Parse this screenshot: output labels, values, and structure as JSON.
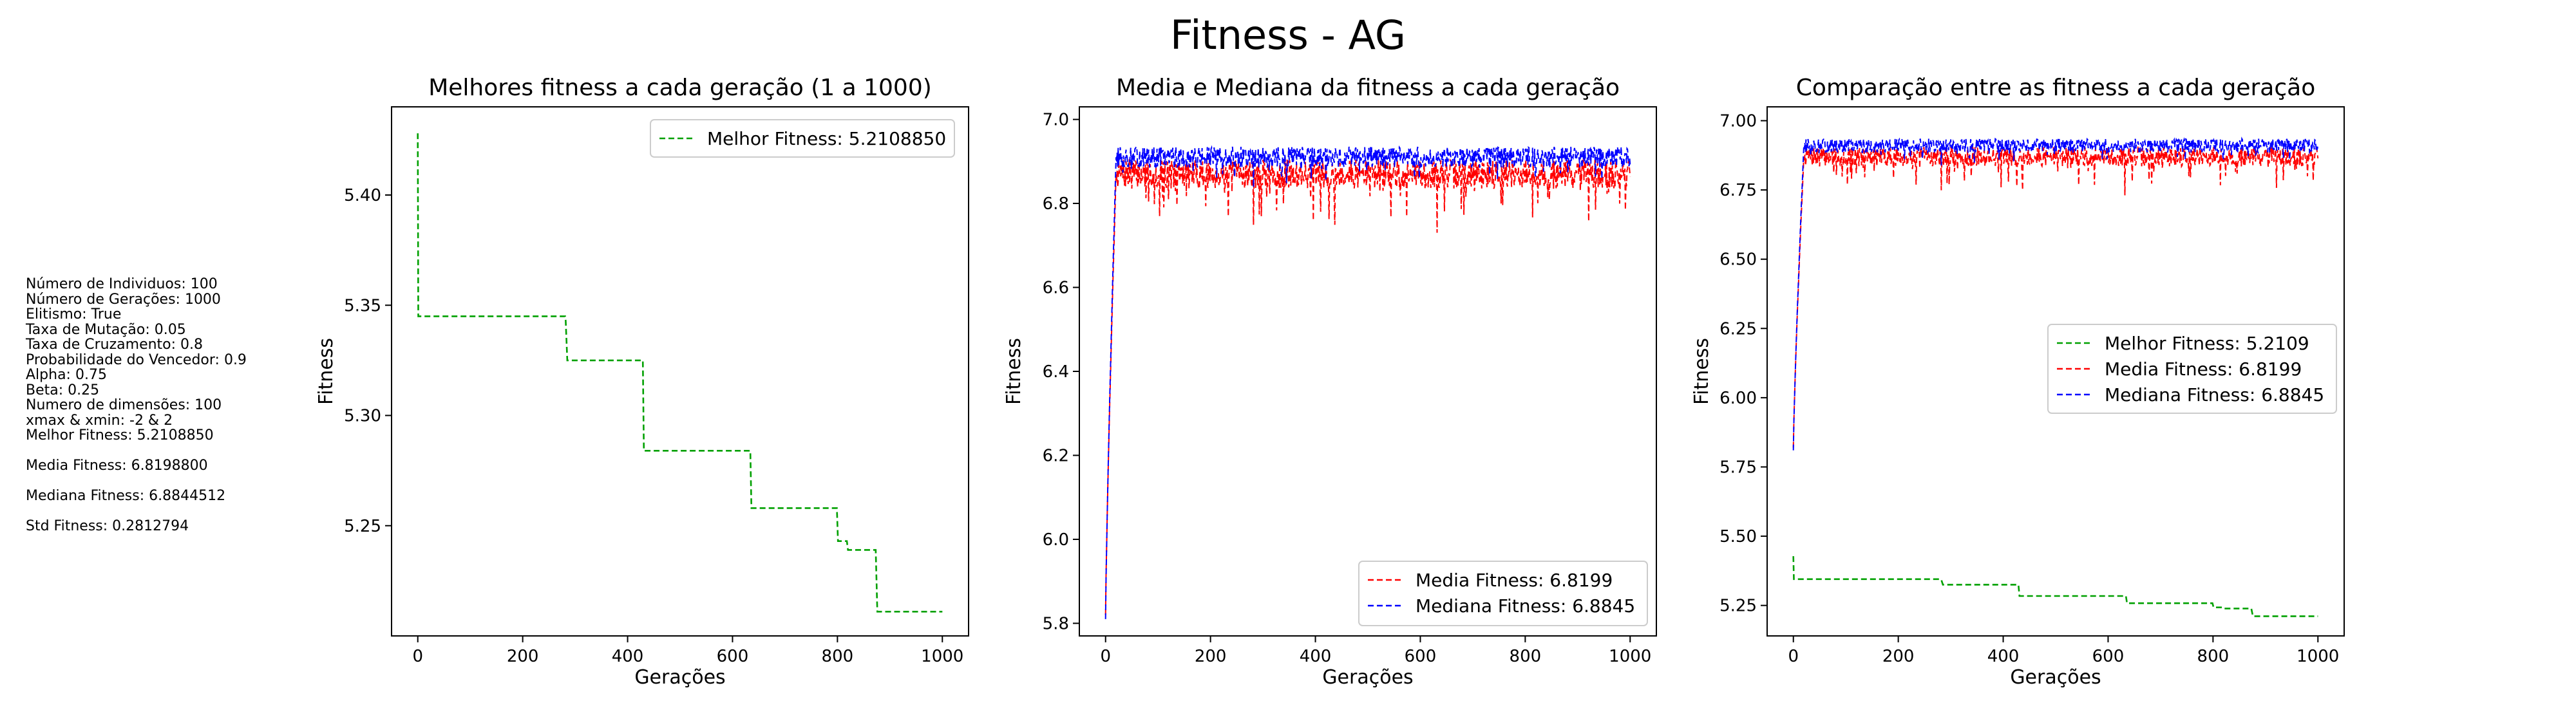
{
  "suptitle": "Fitness - AG",
  "info_lines": [
    "Número de Individuos: 100",
    "Número de Gerações: 1000",
    "Elitismo: True",
    "Taxa de Mutação: 0.05",
    "Taxa de Cruzamento: 0.8",
    "Probabilidade do Vencedor: 0.9",
    "Alpha: 0.75",
    "Beta: 0.25",
    "Numero de dimensões: 100",
    "xmax & xmin: -2 & 2",
    "Melhor Fitness: 5.2108850",
    "",
    "Media Fitness: 6.8198800",
    "",
    "Mediana Fitness: 6.8844512",
    "",
    "Std Fitness: 0.2812794"
  ],
  "colors": {
    "best": "#00a000",
    "mean": "#ff0000",
    "median": "#0000ff"
  },
  "chart_data": [
    {
      "type": "line",
      "title": "Melhores fitness a cada geração (1 a 1000)",
      "xlabel": "Gerações",
      "ylabel": "Fitness",
      "xlim": [
        -50,
        1050
      ],
      "ylim": [
        5.2,
        5.44
      ],
      "xticks": [
        0,
        200,
        400,
        600,
        800,
        1000
      ],
      "yticks": [
        5.25,
        5.3,
        5.35,
        5.4
      ],
      "ytick_labels": [
        "5.25",
        "5.30",
        "5.35",
        "5.40"
      ],
      "legend_position": "upper right",
      "series": [
        {
          "name": "Melhor Fitness: 5.2108850",
          "color": "best",
          "style": "step",
          "points": [
            [
              0,
              5.428
            ],
            [
              1,
              5.345
            ],
            [
              281,
              5.345
            ],
            [
              282,
              5.343
            ],
            [
              285,
              5.325
            ],
            [
              429,
              5.325
            ],
            [
              431,
              5.284
            ],
            [
              634,
              5.284
            ],
            [
              636,
              5.258
            ],
            [
              799,
              5.258
            ],
            [
              801,
              5.243
            ],
            [
              818,
              5.243
            ],
            [
              820,
              5.239
            ],
            [
              873,
              5.239
            ],
            [
              876,
              5.211
            ],
            [
              1000,
              5.211
            ]
          ]
        }
      ]
    },
    {
      "type": "line",
      "title": "Media e Mediana da fitness a cada geração",
      "xlabel": "Gerações",
      "ylabel": "Fitness",
      "xlim": [
        -50,
        1050
      ],
      "ylim": [
        5.77,
        7.03
      ],
      "xticks": [
        0,
        200,
        400,
        600,
        800,
        1000
      ],
      "yticks": [
        5.8,
        6.0,
        6.2,
        6.4,
        6.6,
        6.8,
        7.0
      ],
      "ytick_labels": [
        "5.8",
        "6.0",
        "6.2",
        "6.4",
        "6.6",
        "6.8",
        "7.0"
      ],
      "legend_position": "lower right",
      "series": [
        {
          "name": "Media Fitness: 6.8199",
          "color": "mean",
          "style": "noisy",
          "start": 5.82,
          "rise_end": 20,
          "base": 6.87,
          "amp": 0.035,
          "dip": 0.11,
          "seed": 7
        },
        {
          "name": "Mediana Fitness: 6.8845",
          "color": "median",
          "style": "noisy",
          "start": 5.81,
          "rise_end": 20,
          "base": 6.91,
          "amp": 0.025,
          "dip": 0.05,
          "seed": 13
        }
      ]
    },
    {
      "type": "line",
      "title": "Comparação entre as fitness a cada geração",
      "xlabel": "Gerações",
      "ylabel": "Fitness",
      "xlim": [
        -50,
        1050
      ],
      "ylim": [
        5.14,
        7.05
      ],
      "xticks": [
        0,
        200,
        400,
        600,
        800,
        1000
      ],
      "yticks": [
        5.25,
        5.5,
        5.75,
        6.0,
        6.25,
        6.5,
        6.75,
        7.0
      ],
      "ytick_labels": [
        "5.25",
        "5.50",
        "5.75",
        "6.00",
        "6.25",
        "6.50",
        "6.75",
        "7.00"
      ],
      "legend_position": "center right",
      "series": [
        {
          "name": "Melhor Fitness: 5.2109",
          "color": "best",
          "style": "step",
          "ref": 0
        },
        {
          "name": "Media Fitness: 6.8199",
          "color": "mean",
          "style": "noisy",
          "start": 5.82,
          "rise_end": 20,
          "base": 6.87,
          "amp": 0.035,
          "dip": 0.11,
          "seed": 7
        },
        {
          "name": "Mediana Fitness: 6.8845",
          "color": "median",
          "style": "noisy",
          "start": 5.81,
          "rise_end": 20,
          "base": 6.91,
          "amp": 0.025,
          "dip": 0.05,
          "seed": 13
        }
      ]
    }
  ]
}
